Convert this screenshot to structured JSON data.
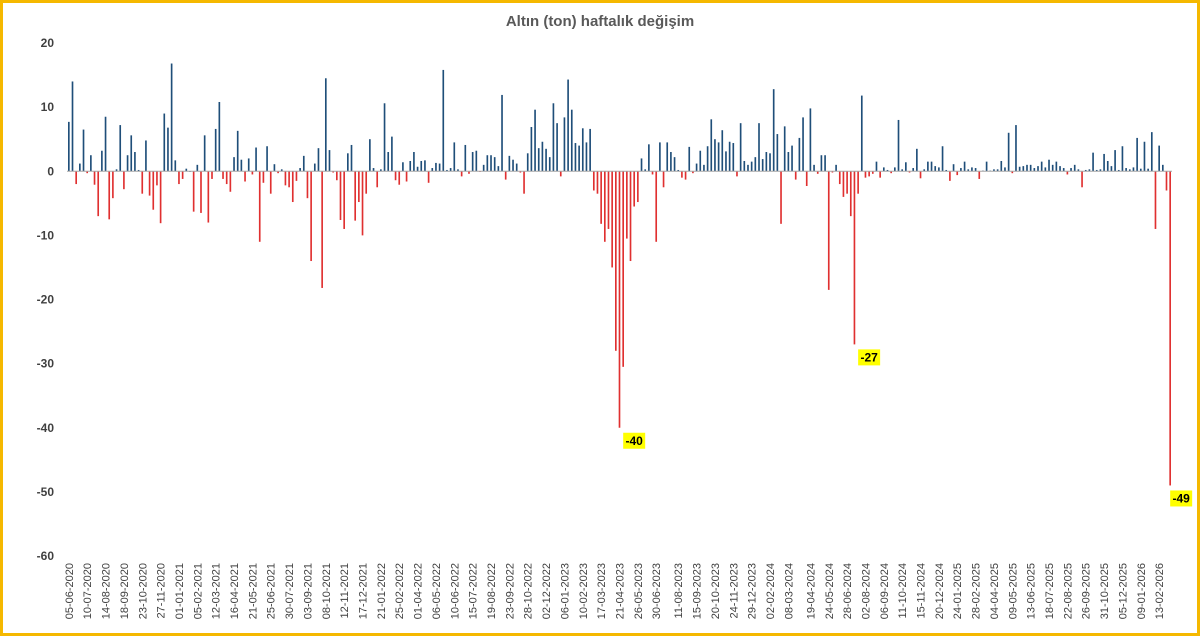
{
  "chart_data": {
    "type": "bar",
    "title": "Altın (ton) haftalık değişim",
    "xlabel": "",
    "ylabel": "",
    "ylim": [
      -60,
      20
    ],
    "yticks": [
      20,
      10,
      0,
      -10,
      -20,
      -30,
      -40,
      -50,
      -60
    ],
    "grid": false,
    "legend": "none",
    "colors": {
      "positive": "#1f4e79",
      "negative": "#e03030",
      "frame": "#f5b800",
      "annotation_bg": "#ffff00"
    },
    "tick_labels": [
      "05-06-2020",
      "10-07-2020",
      "14-08-2020",
      "18-09-2020",
      "23-10-2020",
      "27-11-2020",
      "01-01-2021",
      "05-02-2021",
      "12-03-2021",
      "16-04-2021",
      "21-05-2021",
      "25-06-2021",
      "30-07-2021",
      "03-09-2021",
      "08-10-2021",
      "12-11-2021",
      "17-12-2021",
      "21-01-2022",
      "25-02-2022",
      "01-04-2022",
      "06-05-2022",
      "10-06-2022",
      "15-07-2022",
      "19-08-2022",
      "23-09-2022",
      "28-10-2022",
      "02-12-2022",
      "06-01-2023",
      "10-02-2023",
      "17-03-2023",
      "21-04-2023",
      "26-05-2023",
      "30-06-2023",
      "11-08-2023",
      "15-09-2023",
      "20-10-2023",
      "24-11-2023",
      "29-12-2023",
      "02-02-2024",
      "08-03-2024",
      "19-04-2024",
      "24-05-2024",
      "28-06-2024",
      "02-08-2024",
      "06-09-2024",
      "11-10-2024",
      "15-11-2024",
      "20-12-2024",
      "24-01-2025",
      "28-02-2025",
      "04-04-2025",
      "09-05-2025",
      "13-06-2025",
      "18-07-2025",
      "22-08-2025",
      "26-09-2025",
      "31-10-2025",
      "05-12-2025",
      "09-01-2026",
      "13-02-2026"
    ],
    "tick_positions": [
      0,
      5,
      10,
      15,
      20,
      25,
      30,
      35,
      40,
      45,
      50,
      55,
      60,
      65,
      70,
      75,
      80,
      85,
      90,
      95,
      100,
      105,
      110,
      115,
      120,
      125,
      130,
      135,
      140,
      145,
      150,
      155,
      160,
      166,
      171,
      176,
      181,
      186,
      191,
      196,
      202,
      207,
      212,
      217,
      222,
      227,
      232,
      237,
      242,
      247,
      252,
      257,
      262,
      267,
      272,
      277,
      282,
      287,
      292,
      297
    ],
    "values": [
      7.7,
      14,
      -2,
      1.2,
      6.5,
      -0.3,
      2.5,
      -2.1,
      -7,
      3.2,
      8.5,
      -7.5,
      -4.2,
      0.3,
      7.2,
      -2.8,
      2.5,
      5.6,
      3,
      0.2,
      -3.5,
      4.8,
      -3.8,
      -6,
      -2.2,
      -8.1,
      9,
      6.8,
      16.8,
      1.7,
      -2,
      -1.2,
      0.4,
      0,
      -6.3,
      1,
      -6.5,
      5.6,
      -8,
      -1.2,
      6.6,
      10.8,
      -1.2,
      -2,
      -3.2,
      2.2,
      6.3,
      1.8,
      -1.6,
      2,
      -0.5,
      3.7,
      -11,
      -1.8,
      3.9,
      -3.5,
      1.1,
      -0.3,
      0.3,
      -2.2,
      -2.5,
      -4.8,
      -1.5,
      0.5,
      2.4,
      -4.2,
      -14,
      1.2,
      3.6,
      -18.2,
      14.5,
      3.3,
      -0.2,
      -1.4,
      -7.6,
      -9,
      2.8,
      4.1,
      -7.7,
      -4.8,
      -10,
      -3.5,
      5,
      0.5,
      -2.5,
      0.3,
      10.6,
      3,
      5.4,
      -1.4,
      -2.1,
      1.4,
      -1.6,
      1.6,
      3,
      0.7,
      1.6,
      1.7,
      -1.8,
      0.5,
      1.3,
      1.2,
      15.8,
      0.2,
      0.5,
      4.5,
      0.3,
      -0.8,
      4.1,
      -0.4,
      3,
      3.2,
      -0.1,
      1,
      2.5,
      2.5,
      2.2,
      0.8,
      11.9,
      -1.3,
      2.4,
      1.8,
      1.2,
      -0.2,
      -3.5,
      2.8,
      6.9,
      9.6,
      3.6,
      4.6,
      3.5,
      2.2,
      10.6,
      7.5,
      -0.8,
      8.4,
      14.3,
      9.6,
      4.4,
      4,
      6.7,
      4.5,
      6.6,
      -3,
      -3.5,
      -8.2,
      -11,
      -9,
      -15,
      -28,
      -40,
      -30.5,
      -10.5,
      -14,
      -5.5,
      -4.8,
      2,
      0.3,
      4.2,
      -0.5,
      -11,
      4.5,
      -2.5,
      4.5,
      3,
      2.2,
      0.2,
      -1,
      -1.3,
      3.8,
      -0.3,
      1.2,
      3.2,
      1,
      3.9,
      8.1,
      5,
      4.5,
      6.4,
      3.1,
      4.6,
      4.4,
      -0.8,
      7.5,
      1.6,
      1,
      1.5,
      2.2,
      7.5,
      1.9,
      3,
      2.8,
      12.8,
      5.8,
      -8.2,
      7,
      3,
      4,
      -1.3,
      5.2,
      8.4,
      -2.3,
      9.8,
      1,
      -0.4,
      2.5,
      2.5,
      -18.5,
      -0.2,
      1,
      -2,
      -4,
      -3.5,
      -7,
      -27,
      -3.5,
      11.8,
      -1,
      -0.8,
      -0.4,
      1.5,
      -1,
      0.6,
      0.2,
      -0.3,
      0.6,
      8,
      0.3,
      1.4,
      -0.2,
      0.5,
      3.5,
      -1.1,
      0.3,
      1.5,
      1.5,
      0.8,
      0.6,
      3.9,
      0.2,
      -1.5,
      1.1,
      -0.6,
      0.5,
      1.5,
      0.3,
      0.6,
      0.5,
      -1.2,
      0.1,
      1.5,
      0.1,
      0.3,
      0.3,
      1.6,
      0.6,
      6,
      -0.3,
      7.2,
      0.7,
      0.8,
      1,
      1,
      0.5,
      0.8,
      1.5,
      0.6,
      1.8,
      1,
      1.5,
      0.8,
      0.5,
      -0.5,
      0.5,
      1,
      0.3,
      -2.5,
      0.2,
      0.3,
      2.9,
      0.2,
      0.3,
      2.7,
      1.6,
      0.8,
      3.3,
      0.2,
      3.9,
      0.5,
      0.3,
      0.6,
      5.2,
      0.4,
      4.6,
      0.4,
      6.1,
      -9,
      4,
      1,
      -3,
      -49
    ],
    "annotations": [
      {
        "index": 154,
        "value": -40,
        "label": "-40"
      },
      {
        "index": 218,
        "value": -27,
        "label": "-27"
      },
      {
        "index": 303,
        "value": -49,
        "label": "-49"
      }
    ]
  }
}
